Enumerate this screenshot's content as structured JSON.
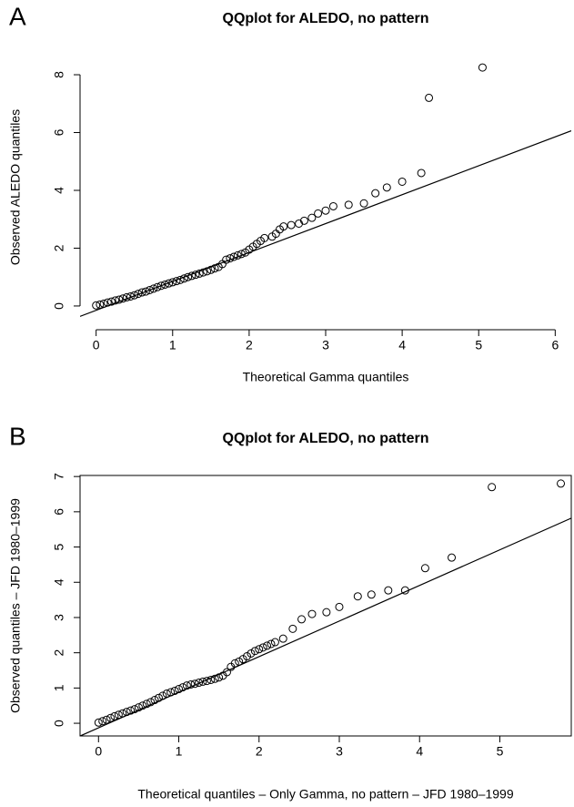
{
  "chart_data": [
    {
      "type": "scatter",
      "panel_label": "A",
      "title": "QQplot for ALEDO, no pattern",
      "xlabel": "Theoretical Gamma quantiles",
      "ylabel": "Observed ALEDO quantiles",
      "box": false,
      "xlim": [
        -0.21,
        6.21
      ],
      "ylim": [
        -0.38,
        8.6
      ],
      "xticks": [
        0,
        1,
        2,
        3,
        4,
        5,
        6
      ],
      "yticks": [
        0,
        2,
        4,
        6,
        8
      ],
      "ref_line": {
        "intercept": -0.15,
        "slope": 1.0
      },
      "x": [
        0.0,
        0.05,
        0.1,
        0.15,
        0.2,
        0.25,
        0.3,
        0.35,
        0.4,
        0.45,
        0.5,
        0.55,
        0.6,
        0.65,
        0.7,
        0.75,
        0.8,
        0.85,
        0.9,
        0.95,
        1.0,
        1.05,
        1.1,
        1.15,
        1.2,
        1.25,
        1.3,
        1.35,
        1.4,
        1.45,
        1.5,
        1.55,
        1.6,
        1.65,
        1.7,
        1.75,
        1.8,
        1.85,
        1.9,
        1.95,
        2.0,
        2.05,
        2.1,
        2.15,
        2.2,
        2.3,
        2.35,
        2.4,
        2.45,
        2.55,
        2.65,
        2.72,
        2.82,
        2.9,
        3.0,
        3.1,
        3.3,
        3.5,
        3.65,
        3.8,
        4.0,
        4.25,
        4.35,
        5.05
      ],
      "values": [
        0.02,
        0.05,
        0.08,
        0.12,
        0.15,
        0.19,
        0.22,
        0.26,
        0.3,
        0.33,
        0.37,
        0.42,
        0.47,
        0.5,
        0.55,
        0.6,
        0.65,
        0.7,
        0.74,
        0.78,
        0.82,
        0.86,
        0.9,
        0.95,
        1.0,
        1.04,
        1.08,
        1.12,
        1.16,
        1.2,
        1.25,
        1.3,
        1.35,
        1.45,
        1.6,
        1.65,
        1.7,
        1.75,
        1.8,
        1.85,
        1.95,
        2.05,
        2.15,
        2.25,
        2.35,
        2.4,
        2.5,
        2.65,
        2.75,
        2.8,
        2.85,
        2.95,
        3.05,
        3.2,
        3.3,
        3.45,
        3.5,
        3.55,
        3.9,
        4.1,
        4.3,
        4.6,
        7.2,
        8.25
      ]
    },
    {
      "type": "scatter",
      "panel_label": "B",
      "title": "QQplot for ALEDO, no pattern",
      "xlabel": "Theoretical quantiles – Only Gamma, no pattern – JFD 1980–1999",
      "ylabel": "Observed quantiles – JFD 1980–1999",
      "box": true,
      "xlim": [
        -0.23,
        5.89
      ],
      "ylim": [
        -0.36,
        7.03
      ],
      "xticks": [
        0,
        1,
        2,
        3,
        4,
        5
      ],
      "yticks": [
        0,
        1,
        2,
        3,
        4,
        5,
        6,
        7
      ],
      "ref_line": {
        "intercept": -0.13,
        "slope": 1.01
      },
      "x": [
        0.0,
        0.05,
        0.1,
        0.15,
        0.2,
        0.25,
        0.3,
        0.35,
        0.4,
        0.45,
        0.5,
        0.55,
        0.6,
        0.65,
        0.7,
        0.75,
        0.8,
        0.85,
        0.9,
        0.95,
        1.0,
        1.05,
        1.1,
        1.15,
        1.2,
        1.25,
        1.3,
        1.35,
        1.4,
        1.45,
        1.5,
        1.55,
        1.6,
        1.65,
        1.7,
        1.75,
        1.8,
        1.85,
        1.9,
        1.95,
        2.0,
        2.05,
        2.1,
        2.15,
        2.2,
        2.3,
        2.42,
        2.53,
        2.66,
        2.84,
        3.0,
        3.23,
        3.4,
        3.61,
        3.82,
        4.07,
        4.4,
        4.9,
        5.76
      ],
      "values": [
        0.02,
        0.06,
        0.1,
        0.15,
        0.2,
        0.24,
        0.28,
        0.32,
        0.36,
        0.4,
        0.45,
        0.5,
        0.55,
        0.6,
        0.66,
        0.72,
        0.78,
        0.84,
        0.88,
        0.92,
        0.97,
        1.02,
        1.07,
        1.1,
        1.12,
        1.15,
        1.18,
        1.2,
        1.23,
        1.26,
        1.3,
        1.35,
        1.45,
        1.6,
        1.7,
        1.75,
        1.82,
        1.9,
        1.98,
        2.05,
        2.1,
        2.15,
        2.2,
        2.25,
        2.3,
        2.4,
        2.68,
        2.95,
        3.1,
        3.15,
        3.3,
        3.6,
        3.65,
        3.77,
        3.77,
        4.4,
        4.7,
        6.7,
        6.8
      ]
    }
  ]
}
